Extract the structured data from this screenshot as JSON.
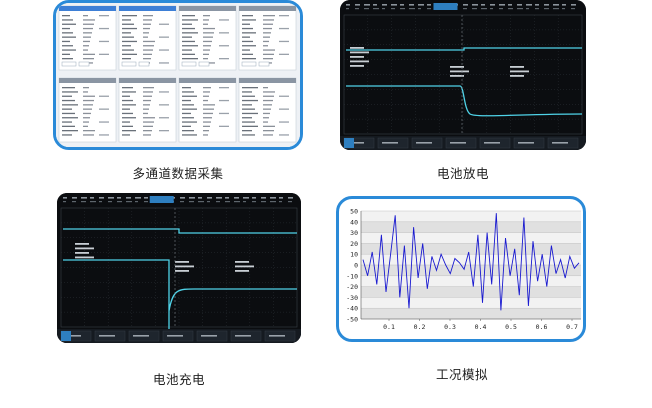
{
  "cards": [
    {
      "caption": "多通道数据采集"
    },
    {
      "caption": "电池放电"
    },
    {
      "caption": "电池充电"
    },
    {
      "caption": "工况模拟"
    }
  ],
  "sim_chart": {
    "y_ticks": [
      "50",
      "40",
      "30",
      "20",
      "10",
      "0",
      "-10",
      "-20",
      "-30",
      "-40",
      "-50"
    ],
    "x_ticks": [
      "0.1",
      "0.2",
      "0.3",
      "0.4",
      "0.5",
      "0.6",
      "0.7"
    ]
  },
  "colors": {
    "accent": "#2a8ad8",
    "scope_trace": "#4fd3e8",
    "scope_bg": "#0b0d10",
    "sim_line": "#1a1ad0"
  }
}
